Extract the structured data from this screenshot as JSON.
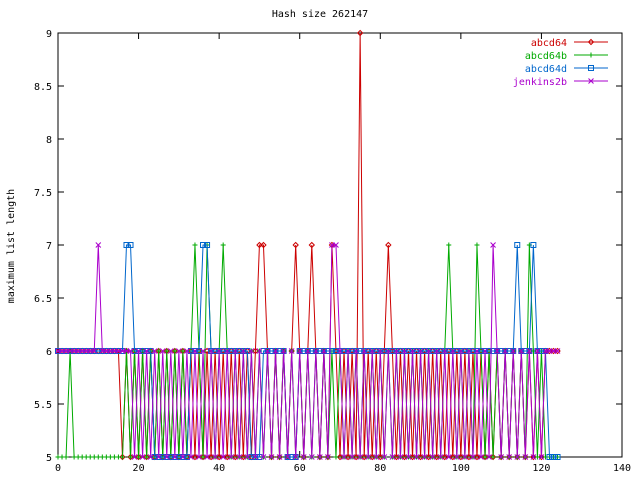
{
  "chart_data": {
    "type": "line",
    "title": "Hash size 262147",
    "xlabel": "",
    "ylabel": "maximum list length",
    "xlim": [
      0,
      140
    ],
    "ylim": [
      5,
      9
    ],
    "x_ticks": [
      "0",
      "20",
      "40",
      "60",
      "80",
      "100",
      "120",
      "140"
    ],
    "y_ticks": [
      "5",
      "5.5",
      "6",
      "6.5",
      "7",
      "7.5",
      "8",
      "8.5",
      "9"
    ],
    "grid": false,
    "legend_position": "top-right",
    "series": [
      {
        "name": "abcd64",
        "color": "#cc0000",
        "marker": "diamond",
        "x": [
          0,
          1,
          2,
          3,
          4,
          5,
          6,
          7,
          8,
          9,
          10,
          11,
          12,
          13,
          14,
          15,
          16,
          17,
          18,
          19,
          20,
          21,
          22,
          23,
          24,
          25,
          26,
          27,
          28,
          29,
          30,
          31,
          32,
          33,
          34,
          35,
          36,
          37,
          38,
          39,
          40,
          41,
          42,
          43,
          44,
          45,
          46,
          47,
          48,
          49,
          50,
          51,
          52,
          53,
          54,
          55,
          56,
          57,
          58,
          59,
          60,
          61,
          62,
          63,
          64,
          65,
          66,
          67,
          68,
          69,
          70,
          71,
          72,
          73,
          74,
          75,
          76,
          77,
          78,
          79,
          80,
          81,
          82,
          83,
          84,
          85,
          86,
          87,
          88,
          89,
          90,
          91,
          92,
          93,
          94,
          95,
          96,
          97,
          98,
          99,
          100,
          101,
          102,
          103,
          104,
          105,
          106,
          107,
          108,
          109,
          110,
          111,
          112,
          113,
          114,
          115,
          116,
          117,
          118,
          119,
          120,
          121,
          122,
          123,
          124
        ],
        "y": [
          6,
          6,
          6,
          6,
          6,
          6,
          6,
          6,
          6,
          6,
          6,
          6,
          6,
          6,
          6,
          6,
          5,
          6,
          5,
          6,
          5,
          6,
          5,
          6,
          5,
          6,
          5,
          6,
          5,
          6,
          5,
          6,
          5,
          6,
          5,
          6,
          5,
          6,
          5,
          6,
          5,
          6,
          5,
          6,
          5,
          6,
          5,
          6,
          5,
          6,
          7,
          7,
          6,
          5,
          6,
          5,
          6,
          5,
          6,
          7,
          6,
          5,
          6,
          7,
          6,
          5,
          6,
          5,
          7,
          6,
          5,
          6,
          5,
          6,
          5,
          9,
          5,
          6,
          5,
          6,
          5,
          6,
          7,
          6,
          5,
          6,
          5,
          6,
          5,
          6,
          5,
          6,
          5,
          6,
          5,
          6,
          5,
          6,
          5,
          6,
          5,
          6,
          5,
          6,
          5,
          6,
          5,
          6,
          5,
          6,
          5,
          6,
          5,
          6,
          5,
          6,
          5,
          6,
          5,
          6,
          5,
          6,
          6,
          6,
          6
        ]
      },
      {
        "name": "abcd64b",
        "color": "#00aa00",
        "marker": "plus",
        "x": [
          0,
          1,
          2,
          3,
          4,
          5,
          6,
          7,
          8,
          9,
          10,
          11,
          12,
          13,
          14,
          15,
          16,
          17,
          18,
          19,
          20,
          21,
          22,
          23,
          24,
          25,
          26,
          27,
          28,
          29,
          30,
          31,
          32,
          33,
          34,
          35,
          36,
          37,
          38,
          39,
          40,
          41,
          42,
          43,
          44,
          45,
          46,
          47,
          48,
          49,
          50,
          51,
          52,
          53,
          54,
          55,
          56,
          57,
          58,
          59,
          60,
          61,
          62,
          63,
          64,
          65,
          66,
          67,
          68,
          69,
          70,
          71,
          72,
          73,
          74,
          75,
          76,
          77,
          78,
          79,
          80,
          81,
          82,
          83,
          84,
          85,
          86,
          87,
          88,
          89,
          90,
          91,
          92,
          93,
          94,
          95,
          96,
          97,
          98,
          99,
          100,
          101,
          102,
          103,
          104,
          105,
          106,
          107,
          108,
          109,
          110,
          111,
          112,
          113,
          114,
          115,
          116,
          117,
          118,
          119,
          120,
          121,
          122,
          123,
          124
        ],
        "y": [
          5,
          5,
          5,
          6,
          5,
          5,
          5,
          5,
          5,
          5,
          5,
          5,
          5,
          5,
          5,
          5,
          5,
          6,
          5,
          6,
          5,
          6,
          5,
          6,
          5,
          6,
          5,
          6,
          5,
          6,
          5,
          6,
          5,
          6,
          7,
          6,
          5,
          7,
          6,
          5,
          6,
          7,
          6,
          5,
          6,
          5,
          6,
          5,
          6,
          5,
          6,
          5,
          6,
          5,
          6,
          5,
          6,
          5,
          6,
          5,
          6,
          5,
          6,
          5,
          6,
          5,
          6,
          5,
          6,
          5,
          6,
          5,
          6,
          5,
          6,
          5,
          6,
          5,
          6,
          5,
          6,
          5,
          6,
          5,
          6,
          5,
          6,
          5,
          6,
          5,
          6,
          5,
          6,
          5,
          6,
          5,
          6,
          7,
          6,
          5,
          6,
          5,
          6,
          5,
          7,
          6,
          5,
          6,
          5,
          6,
          5,
          6,
          5,
          6,
          5,
          6,
          5,
          7,
          6,
          5,
          6,
          5,
          5,
          5,
          5
        ]
      },
      {
        "name": "abcd64d",
        "color": "#0066cc",
        "marker": "square",
        "x": [
          0,
          1,
          2,
          3,
          4,
          5,
          6,
          7,
          8,
          9,
          10,
          11,
          12,
          13,
          14,
          15,
          16,
          17,
          18,
          19,
          20,
          21,
          22,
          23,
          24,
          25,
          26,
          27,
          28,
          29,
          30,
          31,
          32,
          33,
          34,
          35,
          36,
          37,
          38,
          39,
          40,
          41,
          42,
          43,
          44,
          45,
          46,
          47,
          48,
          49,
          50,
          51,
          52,
          53,
          54,
          55,
          56,
          57,
          58,
          59,
          60,
          61,
          62,
          63,
          64,
          65,
          66,
          67,
          68,
          69,
          70,
          71,
          72,
          73,
          74,
          75,
          76,
          77,
          78,
          79,
          80,
          81,
          82,
          83,
          84,
          85,
          86,
          87,
          88,
          89,
          90,
          91,
          92,
          93,
          94,
          95,
          96,
          97,
          98,
          99,
          100,
          101,
          102,
          103,
          104,
          105,
          106,
          107,
          108,
          109,
          110,
          111,
          112,
          113,
          114,
          115,
          116,
          117,
          118,
          119,
          120,
          121,
          122,
          123,
          124
        ],
        "y": [
          6,
          6,
          6,
          6,
          6,
          6,
          6,
          6,
          6,
          6,
          6,
          6,
          6,
          6,
          6,
          6,
          6,
          7,
          7,
          6,
          6,
          6,
          6,
          6,
          5,
          5,
          5,
          5,
          5,
          5,
          5,
          5,
          5,
          6,
          6,
          6,
          7,
          7,
          6,
          6,
          6,
          6,
          6,
          6,
          6,
          6,
          6,
          6,
          5,
          5,
          5,
          6,
          6,
          6,
          6,
          6,
          6,
          5,
          5,
          5,
          6,
          6,
          6,
          6,
          6,
          6,
          6,
          6,
          6,
          6,
          6,
          6,
          6,
          6,
          6,
          6,
          6,
          6,
          6,
          6,
          6,
          6,
          6,
          6,
          6,
          6,
          6,
          6,
          6,
          6,
          6,
          6,
          6,
          6,
          6,
          6,
          6,
          6,
          6,
          6,
          6,
          6,
          6,
          6,
          6,
          6,
          6,
          6,
          6,
          6,
          6,
          6,
          6,
          6,
          7,
          6,
          6,
          6,
          7,
          6,
          6,
          6,
          5,
          5,
          5
        ]
      },
      {
        "name": "jenkins2b",
        "color": "#aa00cc",
        "marker": "cross",
        "x": [
          0,
          1,
          2,
          3,
          4,
          5,
          6,
          7,
          8,
          9,
          10,
          11,
          12,
          13,
          14,
          15,
          16,
          17,
          18,
          19,
          20,
          21,
          22,
          23,
          24,
          25,
          26,
          27,
          28,
          29,
          30,
          31,
          32,
          33,
          34,
          35,
          36,
          37,
          38,
          39,
          40,
          41,
          42,
          43,
          44,
          45,
          46,
          47,
          48,
          49,
          50,
          51,
          52,
          53,
          54,
          55,
          56,
          57,
          58,
          59,
          60,
          61,
          62,
          63,
          64,
          65,
          66,
          67,
          68,
          69,
          70,
          71,
          72,
          73,
          74,
          75,
          76,
          77,
          78,
          79,
          80,
          81,
          82,
          83,
          84,
          85,
          86,
          87,
          88,
          89,
          90,
          91,
          92,
          93,
          94,
          95,
          96,
          97,
          98,
          99,
          100,
          101,
          102,
          103,
          104,
          105,
          106,
          107,
          108,
          109,
          110,
          111,
          112,
          113,
          114,
          115,
          116,
          117,
          118,
          119,
          120,
          121,
          122,
          123,
          124
        ],
        "y": [
          6,
          6,
          6,
          6,
          6,
          6,
          6,
          6,
          6,
          6,
          7,
          6,
          6,
          6,
          6,
          6,
          6,
          6,
          6,
          5,
          6,
          5,
          6,
          5,
          6,
          5,
          6,
          5,
          6,
          5,
          6,
          5,
          6,
          5,
          6,
          5,
          6,
          5,
          6,
          5,
          6,
          5,
          6,
          5,
          6,
          5,
          6,
          5,
          6,
          5,
          6,
          5,
          6,
          5,
          6,
          5,
          6,
          5,
          6,
          5,
          6,
          5,
          6,
          5,
          6,
          5,
          6,
          5,
          7,
          7,
          6,
          5,
          6,
          5,
          6,
          5,
          6,
          5,
          6,
          5,
          6,
          5,
          6,
          5,
          6,
          5,
          6,
          5,
          6,
          5,
          6,
          5,
          6,
          5,
          6,
          5,
          6,
          5,
          6,
          5,
          6,
          5,
          6,
          5,
          6,
          5,
          6,
          5,
          7,
          6,
          5,
          6,
          5,
          6,
          5,
          6,
          5,
          6,
          5,
          6,
          5,
          6,
          6,
          6,
          6
        ]
      }
    ]
  }
}
